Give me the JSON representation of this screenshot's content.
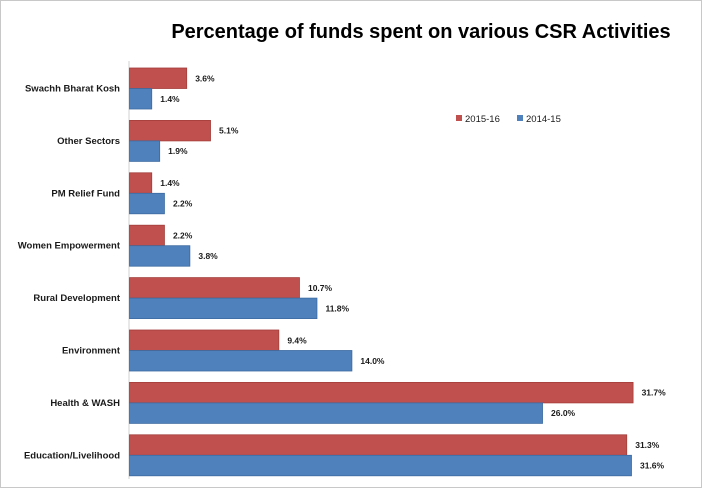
{
  "chart_data": {
    "type": "bar",
    "orientation": "horizontal",
    "title": "Percentage of funds spent on various CSR Activities",
    "categories": [
      "Swachh Bharat Kosh",
      "Other Sectors",
      "PM Relief Fund",
      "Women Empowerment",
      "Rural Development",
      "Environment",
      "Health & WASH",
      "Education/Livelihood"
    ],
    "series": [
      {
        "name": "2015-16",
        "color": "#c0504d",
        "values": [
          3.6,
          5.1,
          1.4,
          2.2,
          10.7,
          9.4,
          31.7,
          31.3
        ],
        "labels": [
          "3.6%",
          "5.1%",
          "1.4%",
          "2.2%",
          "10.7%",
          "9.4%",
          "31.7%",
          "31.3%"
        ]
      },
      {
        "name": "2014-15",
        "color": "#4f81bd",
        "values": [
          1.4,
          1.9,
          2.2,
          3.8,
          11.8,
          14.0,
          26.0,
          31.6
        ],
        "labels": [
          "1.4%",
          "1.9%",
          "2.2%",
          "3.8%",
          "11.8%",
          "14.0%",
          "26.0%",
          "31.6%"
        ]
      }
    ],
    "xlim": [
      0,
      35
    ],
    "grid": false,
    "legend_placement": "top-right",
    "xlabel": "",
    "ylabel": ""
  }
}
